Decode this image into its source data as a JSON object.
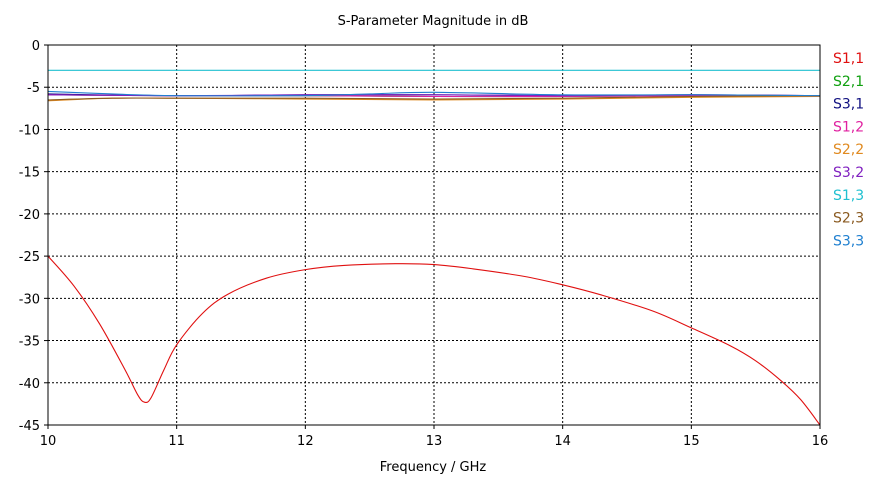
{
  "chart_data": {
    "type": "line",
    "title": "S-Parameter Magnitude in dB",
    "xlabel": "Frequency / GHz",
    "ylabel": "",
    "xlim": [
      10,
      16
    ],
    "ylim": [
      -45,
      0
    ],
    "xticks": [
      10,
      11,
      12,
      13,
      14,
      15,
      16
    ],
    "yticks": [
      0,
      -5,
      -10,
      -15,
      -20,
      -25,
      -30,
      -35,
      -40,
      -45
    ],
    "grid": true,
    "legend_position": "right",
    "series": [
      {
        "name": "S1,1",
        "color": "#e01010",
        "x": [
          10,
          10.2,
          10.4,
          10.6,
          10.7,
          10.75,
          10.8,
          10.9,
          11.0,
          11.2,
          11.4,
          11.7,
          12.0,
          12.3,
          12.7,
          13.0,
          13.3,
          13.7,
          14.0,
          14.3,
          14.7,
          15.0,
          15.3,
          15.5,
          15.7,
          15.85,
          16.0
        ],
        "y": [
          -25,
          -28.5,
          -33,
          -38.5,
          -41.5,
          -42.3,
          -41.8,
          -38.5,
          -35.5,
          -31.8,
          -29.5,
          -27.6,
          -26.6,
          -26.1,
          -25.9,
          -26.0,
          -26.5,
          -27.4,
          -28.4,
          -29.6,
          -31.5,
          -33.5,
          -35.6,
          -37.4,
          -39.8,
          -42.0,
          -45.0
        ]
      },
      {
        "name": "S2,1",
        "color": "#10a010",
        "x": [
          10,
          11,
          12,
          13,
          14,
          15,
          16
        ],
        "y": [
          -5.9,
          -6.0,
          -6.0,
          -6.1,
          -6.1,
          -6.0,
          -6.0
        ]
      },
      {
        "name": "S3,1",
        "color": "#101080",
        "x": [
          10,
          11,
          12,
          13,
          14,
          15,
          16
        ],
        "y": [
          -5.8,
          -6.0,
          -5.9,
          -5.9,
          -6.0,
          -5.9,
          -6.0
        ]
      },
      {
        "name": "S1,2",
        "color": "#e020a0",
        "x": [
          10,
          11,
          12,
          13,
          14,
          15,
          16
        ],
        "y": [
          -5.9,
          -6.0,
          -6.0,
          -6.1,
          -6.1,
          -6.0,
          -6.0
        ]
      },
      {
        "name": "S2,2",
        "color": "#e08a20",
        "x": [
          10,
          10.5,
          11,
          12,
          13,
          14,
          15,
          16
        ],
        "y": [
          -6.6,
          -6.3,
          -6.3,
          -6.4,
          -6.5,
          -6.4,
          -6.2,
          -6.1
        ]
      },
      {
        "name": "S3,2",
        "color": "#8020c0",
        "x": [
          10,
          11,
          12,
          13,
          14,
          15,
          16
        ],
        "y": [
          -5.9,
          -6.0,
          -5.9,
          -5.9,
          -6.0,
          -5.9,
          -6.0
        ]
      },
      {
        "name": "S1,3",
        "color": "#20c0d0",
        "x": [
          10,
          11,
          12,
          13,
          14,
          15,
          16
        ],
        "y": [
          -3.0,
          -3.0,
          -3.0,
          -3.0,
          -3.0,
          -3.0,
          -3.0
        ]
      },
      {
        "name": "S2,3",
        "color": "#8a5a20",
        "x": [
          10,
          10.5,
          11,
          12,
          13,
          14,
          15,
          16
        ],
        "y": [
          -6.5,
          -6.3,
          -6.3,
          -6.3,
          -6.4,
          -6.3,
          -6.1,
          -6.0
        ]
      },
      {
        "name": "S3,3",
        "color": "#2080d0",
        "x": [
          10,
          10.5,
          11,
          12,
          12.5,
          13,
          14,
          15,
          16
        ],
        "y": [
          -5.5,
          -5.8,
          -6.0,
          -6.0,
          -5.8,
          -5.6,
          -5.9,
          -5.9,
          -6.0
        ]
      }
    ]
  }
}
